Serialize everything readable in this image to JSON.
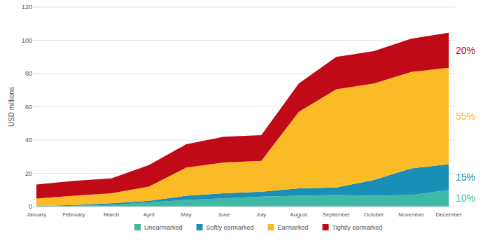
{
  "chart_data": {
    "type": "area",
    "stacked": true,
    "grid": true,
    "legend": "bottom",
    "y_label": "USD millions",
    "categories": [
      "January",
      "February",
      "March",
      "April",
      "May",
      "June",
      "July",
      "August",
      "September",
      "October",
      "November",
      "December"
    ],
    "ylim": [
      0,
      120
    ],
    "yticks": [
      0,
      20,
      40,
      60,
      80,
      100,
      120
    ],
    "series": [
      {
        "name": "Unearmarked",
        "color": "#3dbaa5",
        "values": [
          0,
          0.5,
          1,
          2.5,
          4,
          5,
          6,
          6.5,
          7,
          6.5,
          7,
          10
        ]
      },
      {
        "name": "Softly earmarked",
        "color": "#1a8fb5",
        "values": [
          0.3,
          0.5,
          1,
          1,
          2.5,
          3,
          3,
          4.5,
          4.5,
          9.5,
          16,
          15.5
        ]
      },
      {
        "name": "Earmarked",
        "color": "#fbbb27",
        "values": [
          4.5,
          5.5,
          6,
          8.5,
          17,
          18.5,
          18.5,
          46,
          59,
          58,
          58,
          58
        ]
      },
      {
        "name": "Tightly earmarked",
        "color": "#c00a17",
        "values": [
          8.5,
          9,
          9,
          13,
          14,
          15.5,
          15.5,
          17,
          19.5,
          19.5,
          20,
          21
        ]
      }
    ],
    "annotations": [
      {
        "text": "20%",
        "series": "Tightly earmarked"
      },
      {
        "text": "55%",
        "series": "Earmarked"
      },
      {
        "text": "15%",
        "series": "Softly earmarked"
      },
      {
        "text": "10%",
        "series": "Unearmarked"
      }
    ]
  }
}
